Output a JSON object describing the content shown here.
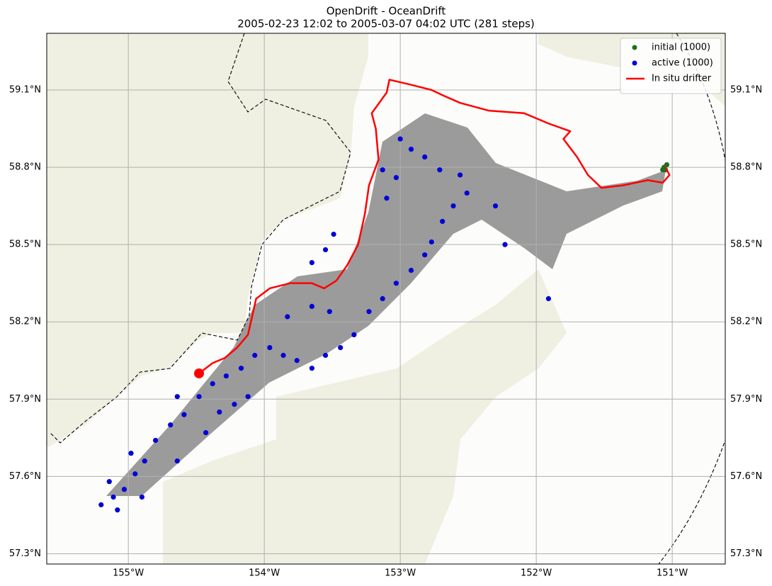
{
  "chart_data": {
    "type": "trajectory",
    "title": "OpenDrift - OceanDrift",
    "subtitle": "2005-02-23 12:02 to 2005-03-07 04:02 UTC (281 steps)",
    "xlim": [
      -155.6,
      -150.61
    ],
    "ylim": [
      57.26,
      59.32
    ],
    "xticks": [
      {
        "value": -155,
        "label": "155°W"
      },
      {
        "value": -154,
        "label": "154°W"
      },
      {
        "value": -153,
        "label": "153°W"
      },
      {
        "value": -152,
        "label": "152°W"
      },
      {
        "value": -151,
        "label": "151°W"
      }
    ],
    "yticks": [
      {
        "value": 57.3,
        "label": "57.3°N"
      },
      {
        "value": 57.6,
        "label": "57.6°N"
      },
      {
        "value": 57.9,
        "label": "57.9°N"
      },
      {
        "value": 58.2,
        "label": "58.2°N"
      },
      {
        "value": 58.5,
        "label": "58.5°N"
      },
      {
        "value": 58.8,
        "label": "58.8°N"
      },
      {
        "value": 59.1,
        "label": "59.1°N"
      }
    ],
    "grid": true,
    "legend": "upper right",
    "series": [
      {
        "name": "initial (1000)",
        "kind": "scatter",
        "color": "#1f6e1f",
        "x": [
          -151.06,
          -151.04,
          -151.07,
          -151.05
        ],
        "y": [
          58.8,
          58.81,
          58.79,
          58.79
        ]
      },
      {
        "name": "active (1000)",
        "kind": "scatter",
        "color": "#0000d8",
        "x": [
          -155.2,
          -155.11,
          -155.03,
          -155.14,
          -154.95,
          -154.88,
          -154.98,
          -154.8,
          -154.69,
          -154.59,
          -154.64,
          -154.48,
          -154.38,
          -154.28,
          -154.43,
          -154.33,
          -154.22,
          -154.12,
          -154.17,
          -154.07,
          -153.96,
          -153.86,
          -153.76,
          -153.65,
          -153.55,
          -153.44,
          -153.34,
          -153.23,
          -153.13,
          -153.03,
          -152.92,
          -152.82,
          -152.77,
          -152.69,
          -152.61,
          -152.51,
          -152.56,
          -152.71,
          -152.82,
          -153.03,
          -153.1,
          -153.49,
          -153.55,
          -153.65,
          -153.83,
          -153.65,
          -153.52,
          -152.3,
          -152.23,
          -151.91,
          -153.0,
          -152.92,
          -153.13,
          -154.64,
          -154.9,
          -155.08
        ],
        "y": [
          57.49,
          57.52,
          57.55,
          57.58,
          57.61,
          57.66,
          57.69,
          57.74,
          57.8,
          57.84,
          57.91,
          57.91,
          57.96,
          57.99,
          57.77,
          57.85,
          57.88,
          57.91,
          58.02,
          58.07,
          58.1,
          58.07,
          58.05,
          58.02,
          58.07,
          58.1,
          58.15,
          58.24,
          58.29,
          58.35,
          58.4,
          58.46,
          58.51,
          58.59,
          58.65,
          58.7,
          58.77,
          58.79,
          58.84,
          58.76,
          58.68,
          58.54,
          58.48,
          58.43,
          58.22,
          58.26,
          58.24,
          58.65,
          58.5,
          58.29,
          58.91,
          58.87,
          58.79,
          57.66,
          57.52,
          57.47
        ]
      },
      {
        "name": "In situ drifter",
        "kind": "line",
        "color": "#ff0000",
        "x": [
          -154.48,
          -154.38,
          -154.29,
          -154.2,
          -154.12,
          -154.09,
          -154.06,
          -153.96,
          -153.81,
          -153.65,
          -153.56,
          -153.47,
          -153.39,
          -153.31,
          -153.26,
          -153.23,
          -153.16,
          -153.18,
          -153.21,
          -153.1,
          -153.08,
          -152.92,
          -152.77,
          -152.69,
          -152.56,
          -152.35,
          -152.09,
          -151.91,
          -151.75,
          -151.8,
          -151.7,
          -151.62,
          -151.52,
          -151.36,
          -151.18,
          -151.07,
          -151.02,
          -151.05
        ],
        "y": [
          58.0,
          58.04,
          58.06,
          58.1,
          58.15,
          58.22,
          58.29,
          58.33,
          58.35,
          58.35,
          58.33,
          58.36,
          58.42,
          58.5,
          58.62,
          58.73,
          58.83,
          58.95,
          59.01,
          59.09,
          59.14,
          59.12,
          59.1,
          59.08,
          59.05,
          59.02,
          59.01,
          58.97,
          58.94,
          58.91,
          58.84,
          58.77,
          58.72,
          58.73,
          58.75,
          58.74,
          58.77,
          58.8
        ]
      }
    ]
  }
}
